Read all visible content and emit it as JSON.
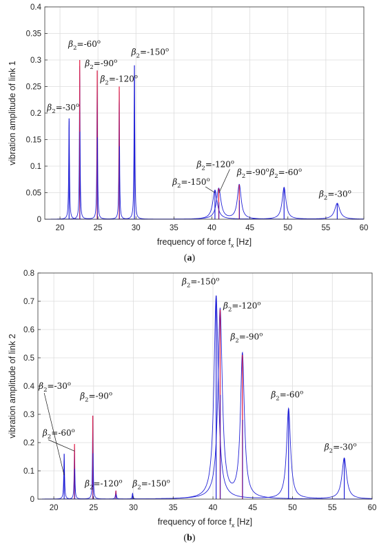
{
  "chart_data": [
    {
      "type": "line",
      "panel_label": "(a)",
      "xlabel": "frequency of force f",
      "xlabel_sub": "x",
      "xlabel_unit": "[Hz]",
      "ylabel": "vibration amplitude of link 1",
      "xlim": [
        18,
        60
      ],
      "ylim": [
        0,
        0.4
      ],
      "xticks": [
        "20",
        "25",
        "30",
        "35",
        "40",
        "45",
        "50",
        "55",
        "60"
      ],
      "yticks": [
        "0",
        "0.05",
        "0.1",
        "0.15",
        "0.2",
        "0.25",
        "0.3",
        "0.35",
        "0.4"
      ],
      "grid": true,
      "colors": {
        "blue": "#1f1fd6",
        "red": "#e0143c"
      },
      "peaks": [
        {
          "f": 21.2,
          "a": 0.19,
          "hw": 0.06,
          "color": "blue"
        },
        {
          "f": 22.6,
          "a": 0.3,
          "hw": 0.05,
          "color": "red"
        },
        {
          "f": 24.9,
          "a": 0.28,
          "hw": 0.05,
          "color": "red"
        },
        {
          "f": 27.8,
          "a": 0.25,
          "hw": 0.05,
          "color": "red"
        },
        {
          "f": 29.8,
          "a": 0.29,
          "hw": 0.06,
          "color": "blue"
        },
        {
          "f": 40.4,
          "a": 0.055,
          "hw": 0.35,
          "color": "blue"
        },
        {
          "f": 40.9,
          "a": 0.058,
          "hw": 0.35,
          "color": "red"
        },
        {
          "f": 43.6,
          "a": 0.065,
          "hw": 0.3,
          "color": "red"
        },
        {
          "f": 49.5,
          "a": 0.06,
          "hw": 0.3,
          "color": "blue"
        },
        {
          "f": 56.5,
          "a": 0.03,
          "hw": 0.4,
          "color": "blue"
        }
      ],
      "annotations": [
        {
          "label": "β",
          "sub": "2",
          "value": "=-30",
          "sup": "o",
          "at": [
            18.3,
            0.205
          ]
        },
        {
          "label": "β",
          "sub": "2",
          "value": "=-60",
          "sup": "o",
          "at": [
            21.1,
            0.325
          ]
        },
        {
          "label": "β",
          "sub": "2",
          "value": "=-90",
          "sup": "o",
          "at": [
            23.3,
            0.288
          ]
        },
        {
          "label": "β",
          "sub": "2",
          "value": "=-120",
          "sup": "o",
          "at": [
            25.3,
            0.259
          ]
        },
        {
          "label": "β",
          "sub": "2",
          "value": "=-150",
          "sup": "o",
          "at": [
            29.4,
            0.31
          ]
        },
        {
          "label": "β",
          "sub": "2",
          "value": "=-120",
          "sup": "o",
          "at": [
            38.0,
            0.098
          ]
        },
        {
          "label": "β",
          "sub": "2",
          "value": "=-150",
          "sup": "o",
          "at": [
            34.8,
            0.065
          ]
        },
        {
          "label": "β",
          "sub": "2",
          "value": "=-90",
          "sup": "o",
          "at": [
            43.3,
            0.083
          ]
        },
        {
          "label": "β",
          "sub": "2",
          "value": "=-60",
          "sup": "o",
          "at": [
            47.6,
            0.083
          ]
        },
        {
          "label": "β",
          "sub": "2",
          "value": "=-30",
          "sup": "o",
          "at": [
            54.1,
            0.042
          ]
        }
      ]
    },
    {
      "type": "line",
      "panel_label": "(b)",
      "xlabel": "frequency of force f",
      "xlabel_sub": "x",
      "xlabel_unit": "[Hz]",
      "ylabel": "vibration amplitude of link 2",
      "xlim": [
        18,
        60
      ],
      "ylim": [
        0,
        0.8
      ],
      "xticks": [
        "20",
        "25",
        "30",
        "35",
        "40",
        "45",
        "50",
        "55",
        "60"
      ],
      "yticks": [
        "0",
        "0.1",
        "0.2",
        "0.3",
        "0.4",
        "0.5",
        "0.6",
        "0.7",
        "0.8"
      ],
      "grid": true,
      "colors": {
        "blue": "#1f1fd6",
        "red": "#e0143c"
      },
      "peaks": [
        {
          "f": 21.3,
          "a": 0.16,
          "hw": 0.06,
          "color": "blue"
        },
        {
          "f": 22.6,
          "a": 0.195,
          "hw": 0.05,
          "color": "red"
        },
        {
          "f": 24.9,
          "a": 0.295,
          "hw": 0.05,
          "color": "red"
        },
        {
          "f": 27.8,
          "a": 0.03,
          "hw": 0.06,
          "color": "red"
        },
        {
          "f": 29.9,
          "a": 0.02,
          "hw": 0.06,
          "color": "blue"
        },
        {
          "f": 40.4,
          "a": 0.72,
          "hw": 0.33,
          "color": "blue"
        },
        {
          "f": 40.9,
          "a": 0.67,
          "hw": 0.33,
          "color": "red"
        },
        {
          "f": 43.7,
          "a": 0.51,
          "hw": 0.3,
          "color": "red"
        },
        {
          "f": 49.5,
          "a": 0.32,
          "hw": 0.3,
          "color": "blue"
        },
        {
          "f": 56.5,
          "a": 0.145,
          "hw": 0.35,
          "color": "blue"
        }
      ],
      "annotations": [
        {
          "label": "β",
          "sub": "2",
          "value": "=-30",
          "sup": "o",
          "at": [
            18.1,
            0.39
          ]
        },
        {
          "label": "β",
          "sub": "2",
          "value": "=-60",
          "sup": "o",
          "at": [
            18.6,
            0.225
          ]
        },
        {
          "label": "β",
          "sub": "2",
          "value": "=-90",
          "sup": "o",
          "at": [
            23.3,
            0.355
          ]
        },
        {
          "label": "β",
          "sub": "2",
          "value": "=-120",
          "sup": "o",
          "at": [
            23.9,
            0.045
          ]
        },
        {
          "label": "β",
          "sub": "2",
          "value": "=-150",
          "sup": "o",
          "at": [
            29.9,
            0.045
          ]
        },
        {
          "label": "β",
          "sub": "2",
          "value": "=-150",
          "sup": "o",
          "at": [
            36.1,
            0.76
          ]
        },
        {
          "label": "β",
          "sub": "2",
          "value": "=-120",
          "sup": "o",
          "at": [
            41.3,
            0.675
          ]
        },
        {
          "label": "β",
          "sub": "2",
          "value": "=-90",
          "sup": "o",
          "at": [
            42.2,
            0.565
          ]
        },
        {
          "label": "β",
          "sub": "2",
          "value": "=-60",
          "sup": "o",
          "at": [
            47.3,
            0.36
          ]
        },
        {
          "label": "β",
          "sub": "2",
          "value": "=-30",
          "sup": "o",
          "at": [
            54.0,
            0.175
          ]
        }
      ]
    }
  ]
}
